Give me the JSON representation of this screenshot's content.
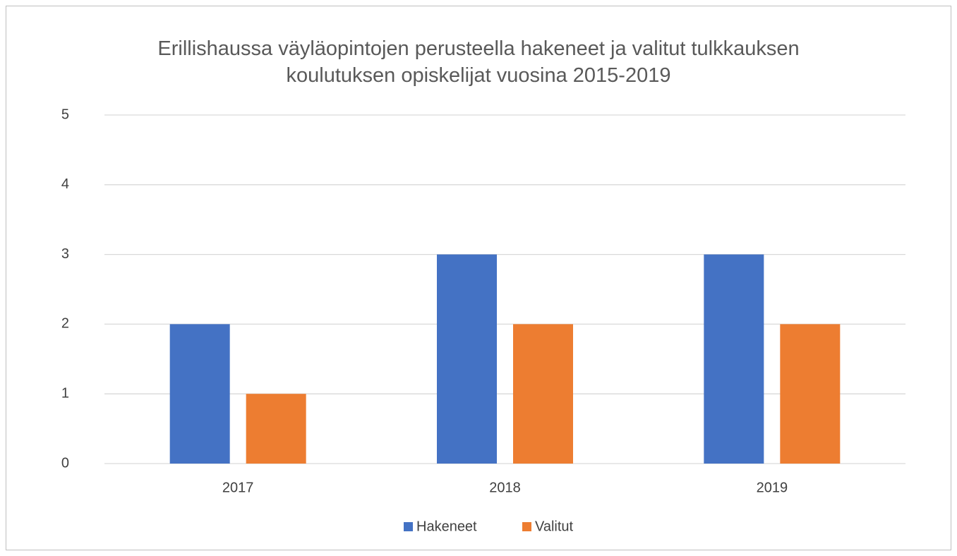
{
  "chart_data": {
    "type": "bar",
    "title": "Erillishaussa väyläopintojen perusteella hakeneet ja valitut tulkkauksen koulutuksen opiskelijat vuosina 2015-2019",
    "categories": [
      "2017",
      "2018",
      "2019"
    ],
    "series": [
      {
        "name": "Hakeneet",
        "color": "#4472c4",
        "values": [
          2,
          3,
          3
        ]
      },
      {
        "name": "Valitut",
        "color": "#ed7d31",
        "values": [
          1,
          2,
          2
        ]
      }
    ],
    "ylim": [
      0,
      5
    ],
    "yticks": [
      0,
      1,
      2,
      3,
      4,
      5
    ],
    "grid": true,
    "legend": "bottom"
  }
}
